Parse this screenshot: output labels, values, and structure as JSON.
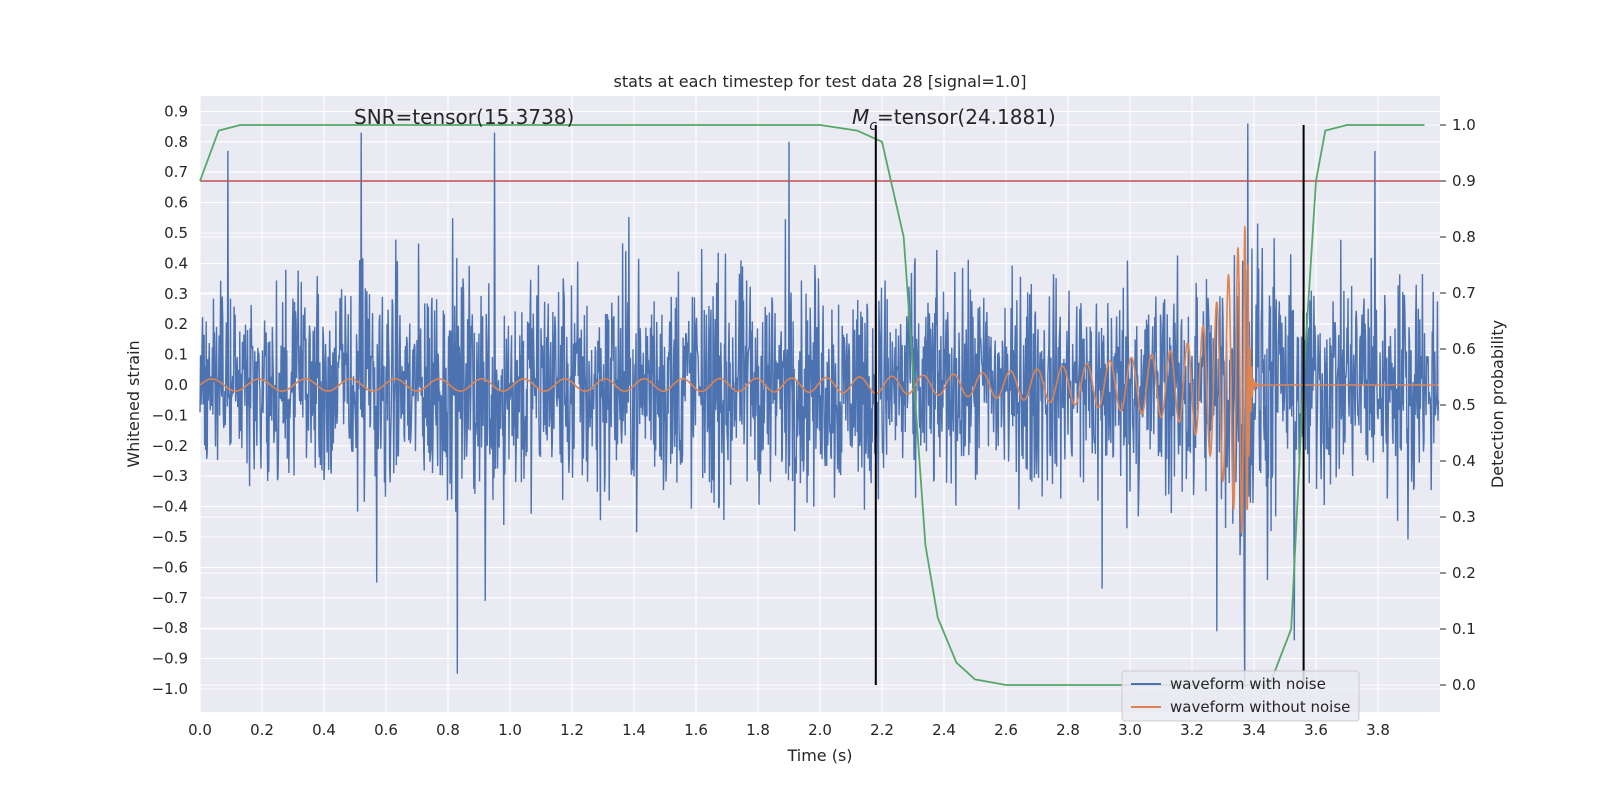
{
  "chart_data": {
    "type": "line",
    "title": "stats at each timestep for test data 28 [signal=1.0]",
    "xlabel": "Time (s)",
    "ylabel": "Whitened strain",
    "y2label": "Detection probability",
    "xlim": [
      0.0,
      4.0
    ],
    "ylim": [
      -1.09,
      0.97
    ],
    "y2lim": [
      -0.05,
      1.03
    ],
    "x_ticks": [
      "0.0",
      "0.2",
      "0.4",
      "0.6",
      "0.8",
      "1.0",
      "1.2",
      "1.4",
      "1.6",
      "1.8",
      "2.0",
      "2.2",
      "2.4",
      "2.6",
      "2.8",
      "3.0",
      "3.2",
      "3.4",
      "3.6",
      "3.8"
    ],
    "y_ticks": [
      "0.9",
      "0.8",
      "0.7",
      "0.6",
      "0.5",
      "0.4",
      "0.3",
      "0.2",
      "0.1",
      "0.0",
      "−0.1",
      "−0.2",
      "−0.3",
      "−0.4",
      "−0.5",
      "−0.6",
      "−0.7",
      "−0.8",
      "−0.9",
      "−1.0"
    ],
    "y2_ticks": [
      "1.0",
      "0.9",
      "0.8",
      "0.7",
      "0.6",
      "0.5",
      "0.4",
      "0.3",
      "0.2",
      "0.1",
      "0.0"
    ],
    "grid": true,
    "legend_position": "lower-right",
    "annotations": {
      "snr": "SNR=tensor(15.3738)",
      "mc_symbol": "M",
      "mc_sub": "c",
      "mc_value": "=tensor(24.1881)"
    },
    "threshold_y2": 0.9,
    "vertical_markers_x": [
      2.18,
      3.56
    ],
    "series": [
      {
        "name": "waveform with noise",
        "color": "#4c72b0",
        "axis": "left",
        "description": "noise envelope",
        "envelope_x": [
          0.0,
          0.5,
          1.0,
          1.5,
          2.0,
          2.5,
          3.0,
          3.3,
          3.38,
          3.5,
          3.6,
          3.8,
          4.0
        ],
        "envelope_upper": [
          0.4,
          0.55,
          0.55,
          0.55,
          0.55,
          0.5,
          0.5,
          0.55,
          0.85,
          0.5,
          0.55,
          0.55,
          0.5
        ],
        "envelope_lower": [
          -0.35,
          -0.55,
          -0.6,
          -0.55,
          -0.55,
          -0.5,
          -0.55,
          -0.6,
          -0.95,
          -0.55,
          -0.55,
          -0.55,
          -0.45
        ],
        "spikes": [
          [
            0.09,
            0.77
          ],
          [
            0.52,
            0.83
          ],
          [
            0.95,
            0.83
          ],
          [
            1.9,
            0.8
          ],
          [
            3.38,
            0.86
          ],
          [
            3.79,
            0.77
          ],
          [
            0.83,
            -0.95
          ],
          [
            3.37,
            -0.98
          ],
          [
            3.53,
            -0.84
          ],
          [
            0.57,
            -0.65
          ],
          [
            0.92,
            -0.71
          ],
          [
            2.91,
            -0.67
          ],
          [
            3.28,
            -0.81
          ]
        ]
      },
      {
        "name": "waveform without noise",
        "color": "#dd8452",
        "axis": "left",
        "chirp": {
          "start_x": 0.0,
          "merger_x": 3.38,
          "start_amplitude": 0.02,
          "peak_amplitude": 0.55,
          "end_x": 4.0
        }
      },
      {
        "name": "detection probability",
        "color": "#55a868",
        "axis": "right",
        "x": [
          0.0,
          0.06,
          0.13,
          0.2,
          0.5,
          1.0,
          1.5,
          2.0,
          2.12,
          2.2,
          2.27,
          2.34,
          2.38,
          2.44,
          2.5,
          2.6,
          3.0,
          3.38,
          3.45,
          3.52,
          3.56,
          3.6,
          3.63,
          3.7,
          3.8,
          3.95
        ],
        "y": [
          0.9,
          0.99,
          1.0,
          1.0,
          1.0,
          1.0,
          1.0,
          1.0,
          0.99,
          0.97,
          0.8,
          0.25,
          0.12,
          0.04,
          0.01,
          0.0,
          0.0,
          0.0,
          0.0,
          0.1,
          0.55,
          0.9,
          0.99,
          1.0,
          1.0,
          1.0
        ]
      },
      {
        "name": "threshold",
        "color": "#c44e52",
        "axis": "right",
        "y": 0.9
      }
    ]
  }
}
